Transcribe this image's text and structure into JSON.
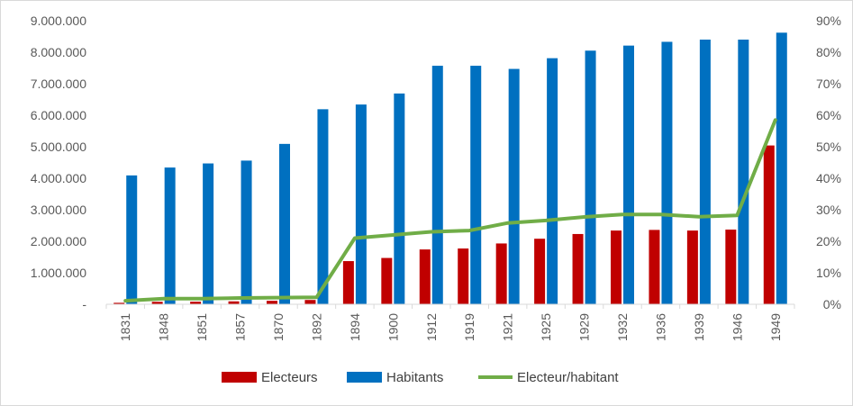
{
  "chart_data": {
    "type": "bar",
    "title": "",
    "xlabel": "",
    "ylabel": "",
    "categories": [
      "1831",
      "1848",
      "1851",
      "1857",
      "1870",
      "1892",
      "1894",
      "1900",
      "1912",
      "1919",
      "1921",
      "1925",
      "1929",
      "1932",
      "1936",
      "1939",
      "1946",
      "1949"
    ],
    "series": [
      {
        "name": "Electeurs",
        "type": "bar",
        "axis": "left",
        "color": "#c00000",
        "values": [
          46000,
          79000,
          82000,
          92000,
          110000,
          137000,
          1370000,
          1470000,
          1740000,
          1770000,
          1930000,
          2080000,
          2230000,
          2340000,
          2360000,
          2340000,
          2370000,
          5040000
        ]
      },
      {
        "name": "Habitants",
        "type": "bar",
        "axis": "left",
        "color": "#0070c0",
        "values": [
          4090000,
          4340000,
          4470000,
          4560000,
          5090000,
          6190000,
          6340000,
          6690000,
          7570000,
          7570000,
          7470000,
          7810000,
          8050000,
          8210000,
          8330000,
          8400000,
          8400000,
          8620000
        ]
      },
      {
        "name": "Electeur/habitant",
        "type": "line",
        "axis": "right",
        "color": "#70ad47",
        "values": [
          0.011,
          0.018,
          0.018,
          0.02,
          0.021,
          0.022,
          0.21,
          0.22,
          0.23,
          0.234,
          0.258,
          0.266,
          0.277,
          0.285,
          0.285,
          0.278,
          0.282,
          0.585
        ]
      }
    ],
    "y_left": {
      "ylim": [
        0,
        9000000
      ],
      "ticks": [
        0,
        1000000,
        2000000,
        3000000,
        4000000,
        5000000,
        6000000,
        7000000,
        8000000,
        9000000
      ],
      "tick_labels": [
        "-",
        "1.000.000",
        "2.000.000",
        "3.000.000",
        "4.000.000",
        "5.000.000",
        "6.000.000",
        "7.000.000",
        "8.000.000",
        "9.000.000"
      ]
    },
    "y_right": {
      "ylim": [
        0,
        0.9
      ],
      "ticks": [
        0,
        0.1,
        0.2,
        0.3,
        0.4,
        0.5,
        0.6,
        0.7,
        0.8,
        0.9
      ],
      "tick_labels": [
        "0%",
        "10%",
        "20%",
        "30%",
        "40%",
        "50%",
        "60%",
        "70%",
        "80%",
        "90%"
      ]
    },
    "x_tick_rotation": "vertical",
    "grid": false,
    "legend": {
      "placement": "bottom",
      "entries": [
        "Electeurs",
        "Habitants",
        "Electeur/habitant"
      ]
    }
  }
}
